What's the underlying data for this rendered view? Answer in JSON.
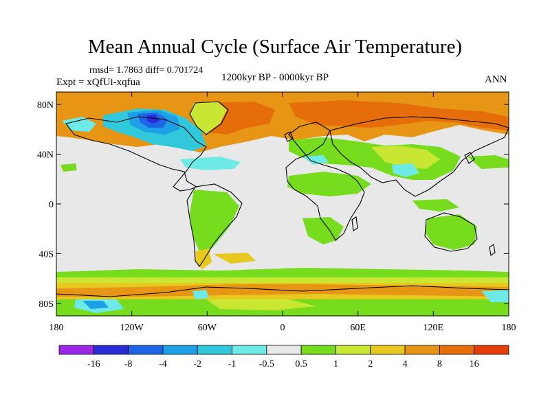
{
  "title": "Mean Annual Cycle (Surface Air Temperature)",
  "stats": "rmsd= 1.7863 diff= 0.701724",
  "experiment": "Expt = xQfUi-xqfua",
  "period": "1200kyr BP - 0000kyr BP",
  "season": "ANN",
  "map": {
    "lon_range": [
      -180,
      180
    ],
    "lat_range": [
      -90,
      90
    ],
    "x_ticks": [
      {
        "value": -180,
        "label": "180"
      },
      {
        "value": -120,
        "label": "120W"
      },
      {
        "value": -60,
        "label": "60W"
      },
      {
        "value": 0,
        "label": "0"
      },
      {
        "value": 60,
        "label": "60E"
      },
      {
        "value": 120,
        "label": "120E"
      },
      {
        "value": 180,
        "label": "180"
      }
    ],
    "y_ticks": [
      {
        "value": 80,
        "label": "80N"
      },
      {
        "value": 40,
        "label": "40N"
      },
      {
        "value": 0,
        "label": "0"
      },
      {
        "value": -40,
        "label": "40S"
      },
      {
        "value": -80,
        "label": "80S"
      }
    ],
    "background_color": "#e8e8e8"
  },
  "colorbar": {
    "colors": [
      "#9a28e6",
      "#2a2ad6",
      "#1e64e6",
      "#1ea0e6",
      "#32c8dc",
      "#6eeae6",
      "#e8e8e8",
      "#78dc1e",
      "#c8e632",
      "#e6c81e",
      "#e69614",
      "#e66e0a",
      "#e63c0a"
    ],
    "labels": [
      "-16",
      "-8",
      "-4",
      "-2",
      "-1",
      "-0.5",
      "0.5",
      "1",
      "2",
      "4",
      "8",
      "16"
    ]
  }
}
